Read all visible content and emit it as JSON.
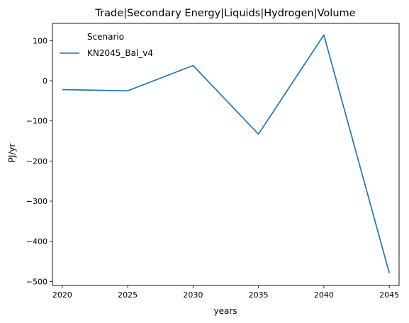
{
  "chart_data": {
    "type": "line",
    "title": "Trade|Secondary Energy|Liquids|Hydrogen|Volume",
    "xlabel": "years",
    "ylabel": "PJ/yr",
    "x": [
      2020,
      2025,
      2030,
      2035,
      2040,
      2045
    ],
    "xticks": [
      "2020",
      "2025",
      "2030",
      "2035",
      "2040",
      "2045"
    ],
    "yticks": [
      "100",
      "0",
      "−100",
      "−200",
      "−300",
      "−400",
      "−500"
    ],
    "ytick_values": [
      100,
      0,
      -100,
      -200,
      -300,
      -400,
      -500
    ],
    "xlim": [
      2019.25,
      2045.75
    ],
    "ylim": [
      -510,
      143
    ],
    "grid": false,
    "legend": {
      "title": "Scenario",
      "placement": "top-left"
    },
    "series": [
      {
        "name": "KN2045_Bal_v4",
        "color": "#1f77b4",
        "values": [
          -22,
          -25,
          38,
          -133,
          114,
          -479
        ]
      }
    ]
  }
}
